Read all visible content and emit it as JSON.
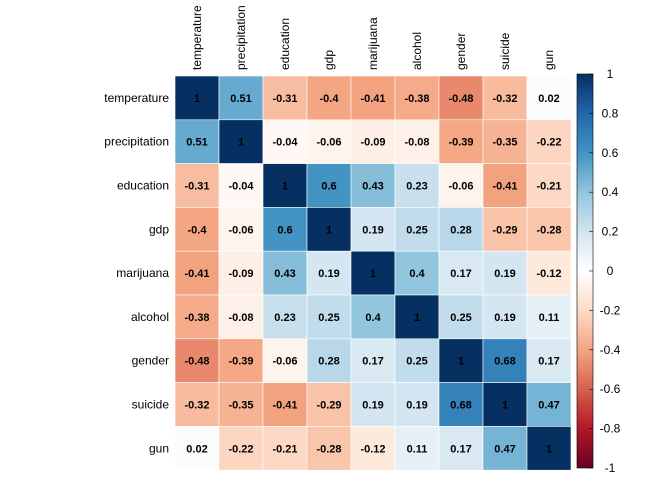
{
  "chart_data": {
    "type": "heatmap",
    "rows": [
      "temperature",
      "precipitation",
      "education",
      "gdp",
      "marijuana",
      "alcohol",
      "gender",
      "suicide",
      "gun"
    ],
    "columns": [
      "temperature",
      "precipitation",
      "education",
      "gdp",
      "marijuana",
      "alcohol",
      "gender",
      "suicide",
      "gun"
    ],
    "values": [
      [
        1,
        0.51,
        -0.31,
        -0.4,
        -0.41,
        -0.38,
        -0.48,
        -0.32,
        0.02
      ],
      [
        0.51,
        1,
        -0.04,
        -0.06,
        -0.09,
        -0.08,
        -0.39,
        -0.35,
        -0.22
      ],
      [
        -0.31,
        -0.04,
        1,
        0.6,
        0.43,
        0.23,
        -0.06,
        -0.41,
        -0.21
      ],
      [
        -0.4,
        -0.06,
        0.6,
        1,
        0.19,
        0.25,
        0.28,
        -0.29,
        -0.28
      ],
      [
        -0.41,
        -0.09,
        0.43,
        0.19,
        1,
        0.4,
        0.17,
        0.19,
        -0.12
      ],
      [
        -0.38,
        -0.08,
        0.23,
        0.25,
        0.4,
        1,
        0.25,
        0.19,
        0.11
      ],
      [
        -0.48,
        -0.39,
        -0.06,
        0.28,
        0.17,
        0.25,
        1,
        0.68,
        0.17
      ],
      [
        -0.32,
        -0.35,
        -0.41,
        -0.29,
        0.19,
        0.19,
        0.68,
        1,
        0.47
      ],
      [
        0.02,
        -0.22,
        -0.21,
        -0.28,
        -0.12,
        0.11,
        0.17,
        0.47,
        1
      ]
    ],
    "value_labels": [
      [
        "1",
        "0.51",
        "-0.31",
        "-0.4",
        "-0.41",
        "-0.38",
        "-0.48",
        "-0.32",
        "0.02"
      ],
      [
        "0.51",
        "1",
        "-0.04",
        "-0.06",
        "-0.09",
        "-0.08",
        "-0.39",
        "-0.35",
        "-0.22"
      ],
      [
        "-0.31",
        "-0.04",
        "1",
        "0.6",
        "0.43",
        "0.23",
        "-0.06",
        "-0.41",
        "-0.21"
      ],
      [
        "-0.4",
        "-0.06",
        "0.6",
        "1",
        "0.19",
        "0.25",
        "0.28",
        "-0.29",
        "-0.28"
      ],
      [
        "-0.41",
        "-0.09",
        "0.43",
        "0.19",
        "1",
        "0.4",
        "0.17",
        "0.19",
        "-0.12"
      ],
      [
        "-0.38",
        "-0.08",
        "0.23",
        "0.25",
        "0.4",
        "1",
        "0.25",
        "0.19",
        "0.11"
      ],
      [
        "-0.48",
        "-0.39",
        "-0.06",
        "0.28",
        "0.17",
        "0.25",
        "1",
        "0.68",
        "0.17"
      ],
      [
        "-0.32",
        "-0.35",
        "-0.41",
        "-0.29",
        "0.19",
        "0.19",
        "0.68",
        "1",
        "0.47"
      ],
      [
        "0.02",
        "-0.22",
        "-0.21",
        "-0.28",
        "-0.12",
        "0.11",
        "0.17",
        "0.47",
        "1"
      ]
    ],
    "colorbar": {
      "range": [
        -1,
        1
      ],
      "ticks": [
        "1",
        "0.8",
        "0.6",
        "0.4",
        "0.2",
        "0",
        "-0.2",
        "-0.4",
        "-0.6",
        "-0.8",
        "-1"
      ],
      "tick_values": [
        1,
        0.8,
        0.6,
        0.4,
        0.2,
        0,
        -0.2,
        -0.4,
        -0.6,
        -0.8,
        -1
      ],
      "palette": [
        "#67001F",
        "#B2182B",
        "#D6604D",
        "#F4A582",
        "#FDDBC7",
        "#FFFFFF",
        "#D1E5F0",
        "#92C5DE",
        "#4393C3",
        "#2166AC",
        "#053061"
      ]
    },
    "title": "",
    "xlabel": "",
    "ylabel": ""
  }
}
